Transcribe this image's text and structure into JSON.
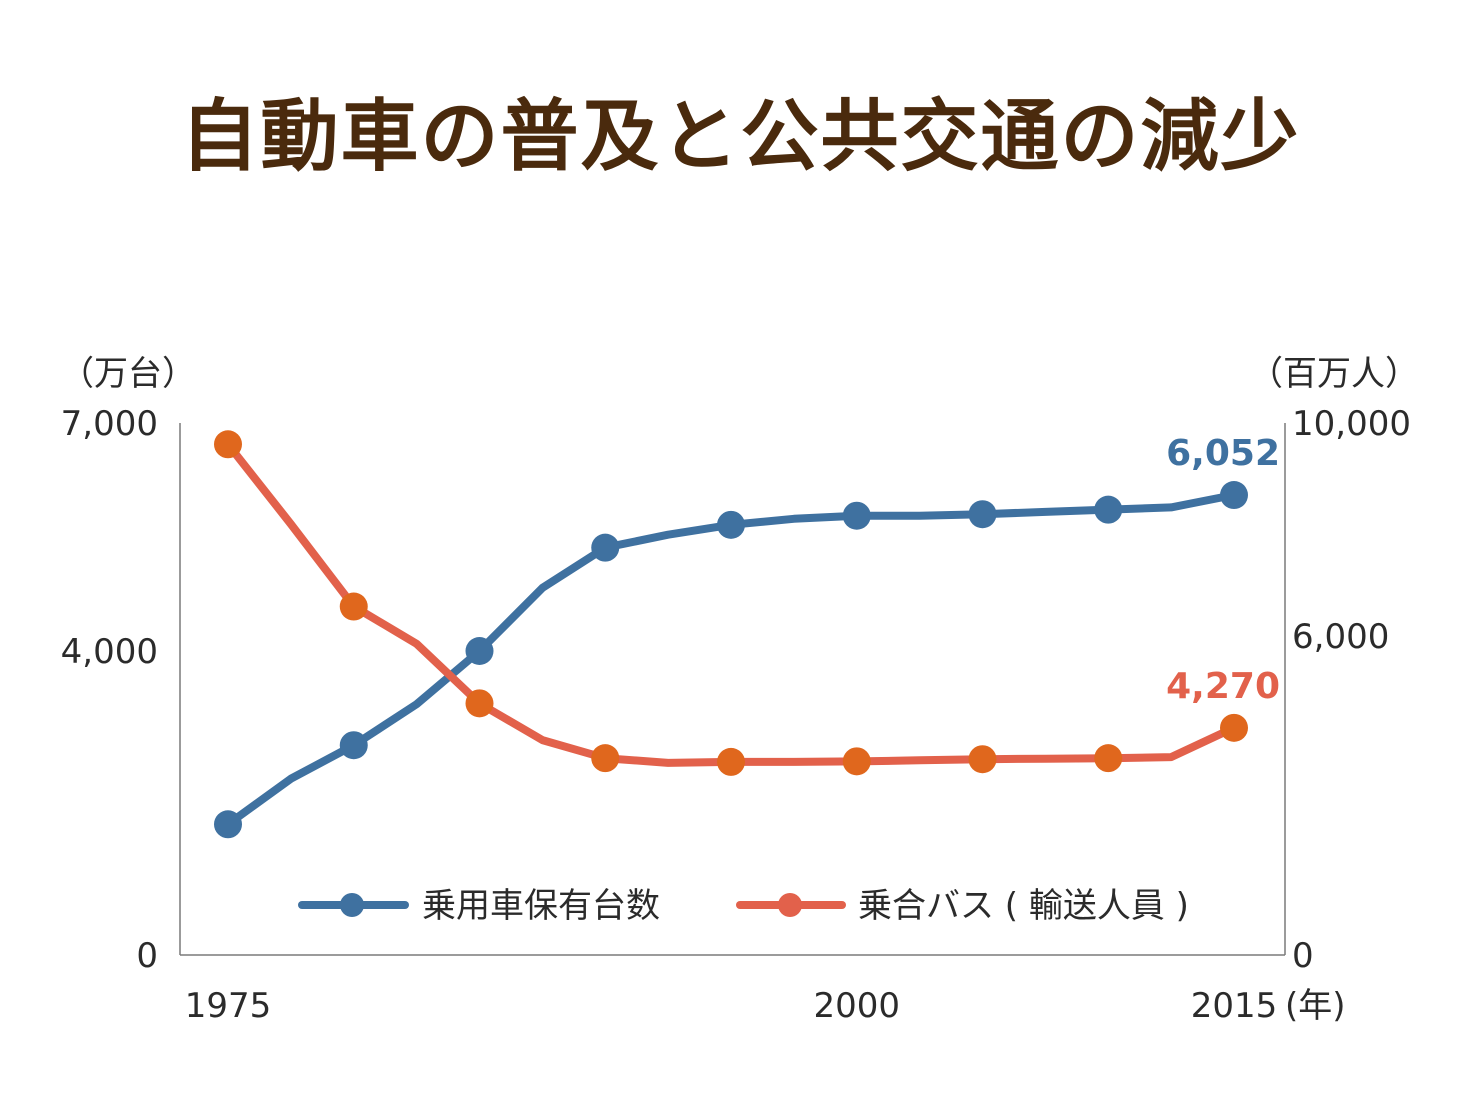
{
  "title": "自動車の普及と公共交通の減少",
  "colors": {
    "title": "#4a2a0d",
    "cars": "#3f71a0",
    "bus_line": "#e2614b",
    "bus_marker": "#e0671d",
    "axis_text": "#2b2b2b",
    "axis_line": "#7a7a7a"
  },
  "chart_data": {
    "type": "line",
    "x_unit": "(年)",
    "x_tick_labels": [
      "1975",
      "2000",
      "2015"
    ],
    "left_axis": {
      "unit": "（万台）",
      "range": [
        0,
        7000
      ],
      "ticks": [
        "0",
        "4,000",
        "7,000"
      ],
      "tick_values": [
        0,
        4000,
        7000
      ]
    },
    "right_axis": {
      "unit": "（百万人）",
      "range": [
        0,
        10000
      ],
      "ticks": [
        "0",
        "6,000",
        "10,000"
      ],
      "tick_values": [
        0,
        6000,
        10000
      ]
    },
    "x": [
      1975,
      1980,
      1985,
      1990,
      1995,
      2000,
      2005,
      2010,
      2015
    ],
    "series": [
      {
        "name": "乗用車保有台数",
        "axis": "left",
        "color": "#3f71a0",
        "x": [
          1975,
          1977.5,
          1980,
          1982.5,
          1985,
          1987.5,
          1990,
          1992.5,
          1995,
          1997.5,
          2000,
          2002.5,
          2005,
          2007.5,
          2010,
          2012.5,
          2015
        ],
        "values": [
          1720,
          2320,
          2760,
          3300,
          4000,
          4830,
          5360,
          5530,
          5660,
          5740,
          5780,
          5780,
          5800,
          5830,
          5860,
          5890,
          6052
        ],
        "end_label": "6,052"
      },
      {
        "name": "乗合バス ( 輸送人員 )",
        "axis": "right",
        "color": "#e2614b",
        "marker_color": "#e0671d",
        "x": [
          1975,
          1977.5,
          1980,
          1982.5,
          1985,
          1987.5,
          1990,
          1992.5,
          1995,
          1997.5,
          2000,
          2002.5,
          2005,
          2007.5,
          2010,
          2012.5,
          2015
        ],
        "values": [
          9600,
          8100,
          6550,
          5850,
          4730,
          4040,
          3700,
          3610,
          3630,
          3630,
          3640,
          3660,
          3680,
          3690,
          3700,
          3720,
          4270
        ],
        "end_label": "4,270"
      }
    ]
  }
}
